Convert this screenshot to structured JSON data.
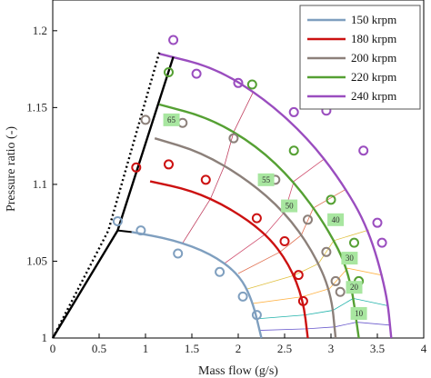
{
  "chart_data": {
    "type": "line",
    "title": "",
    "xlabel": "Mass flow (g/s)",
    "ylabel": "Pressure ratio (-)",
    "xlim": [
      0,
      4
    ],
    "ylim": [
      1,
      1.22
    ],
    "xticks": [
      "0",
      "0.5",
      "1",
      "1.5",
      "2",
      "2.5",
      "3",
      "3.5",
      "4"
    ],
    "yticks": [
      "1",
      "1.05",
      "1.1",
      "1.15",
      "1.2"
    ],
    "legend_position": "top-right",
    "grid": false,
    "series": [
      {
        "name": "150 krpm",
        "color": "#7f9fbf",
        "line": [
          [
            0.85,
            1.069
          ],
          [
            1.3,
            1.064
          ],
          [
            1.7,
            1.055
          ],
          [
            2.0,
            1.042
          ],
          [
            2.15,
            1.025
          ],
          [
            2.25,
            1.0
          ]
        ],
        "measured": [
          [
            0.7,
            1.076
          ],
          [
            0.95,
            1.07
          ],
          [
            1.35,
            1.055
          ],
          [
            1.8,
            1.043
          ],
          [
            2.05,
            1.027
          ],
          [
            2.2,
            1.015
          ]
        ]
      },
      {
        "name": "180 krpm",
        "color": "#cc1111",
        "line": [
          [
            1.05,
            1.102
          ],
          [
            1.5,
            1.096
          ],
          [
            1.9,
            1.085
          ],
          [
            2.3,
            1.068
          ],
          [
            2.55,
            1.048
          ],
          [
            2.7,
            1.025
          ],
          [
            2.75,
            1.0
          ]
        ],
        "measured": [
          [
            0.9,
            1.111
          ],
          [
            1.25,
            1.113
          ],
          [
            1.65,
            1.103
          ],
          [
            2.2,
            1.078
          ],
          [
            2.5,
            1.063
          ],
          [
            2.65,
            1.041
          ],
          [
            2.7,
            1.024
          ]
        ]
      },
      {
        "name": "200 krpm",
        "color": "#8c807a",
        "line": [
          [
            1.1,
            1.13
          ],
          [
            1.6,
            1.121
          ],
          [
            2.1,
            1.103
          ],
          [
            2.5,
            1.082
          ],
          [
            2.8,
            1.057
          ],
          [
            3.0,
            1.03
          ],
          [
            3.05,
            1.0
          ]
        ],
        "measured": [
          [
            1.0,
            1.142
          ],
          [
            1.4,
            1.14
          ],
          [
            1.95,
            1.13
          ],
          [
            2.4,
            1.103
          ],
          [
            2.75,
            1.077
          ],
          [
            2.95,
            1.056
          ],
          [
            3.05,
            1.037
          ],
          [
            3.1,
            1.03
          ]
        ]
      },
      {
        "name": "220 krpm",
        "color": "#55a033",
        "line": [
          [
            1.15,
            1.152
          ],
          [
            1.7,
            1.143
          ],
          [
            2.2,
            1.125
          ],
          [
            2.6,
            1.102
          ],
          [
            2.95,
            1.073
          ],
          [
            3.2,
            1.043
          ],
          [
            3.3,
            1.0
          ]
        ],
        "measured": [
          [
            1.25,
            1.173
          ],
          [
            2.15,
            1.165
          ],
          [
            2.6,
            1.122
          ],
          [
            3.0,
            1.09
          ],
          [
            3.25,
            1.062
          ],
          [
            3.3,
            1.037
          ]
        ]
      },
      {
        "name": "240 krpm",
        "color": "#9a4dbf",
        "line": [
          [
            1.15,
            1.185
          ],
          [
            1.75,
            1.176
          ],
          [
            2.3,
            1.155
          ],
          [
            2.75,
            1.13
          ],
          [
            3.1,
            1.103
          ],
          [
            3.4,
            1.072
          ],
          [
            3.6,
            1.03
          ],
          [
            3.65,
            1.0
          ]
        ],
        "measured": [
          [
            1.3,
            1.194
          ],
          [
            1.55,
            1.172
          ],
          [
            2.0,
            1.166
          ],
          [
            2.6,
            1.147
          ],
          [
            2.95,
            1.148
          ],
          [
            3.35,
            1.122
          ],
          [
            3.5,
            1.075
          ],
          [
            3.55,
            1.062
          ]
        ]
      }
    ],
    "surge_line_solid": [
      [
        0,
        1.0
      ],
      [
        0.7,
        1.07
      ],
      [
        1.3,
        1.183
      ]
    ],
    "surge_line_dotted": [
      [
        0,
        1.0
      ],
      [
        0.6,
        1.07
      ],
      [
        1.15,
        1.186
      ]
    ],
    "efficiency_labels": [
      "10",
      "20",
      "30",
      "40",
      "50",
      "55",
      "65"
    ]
  }
}
